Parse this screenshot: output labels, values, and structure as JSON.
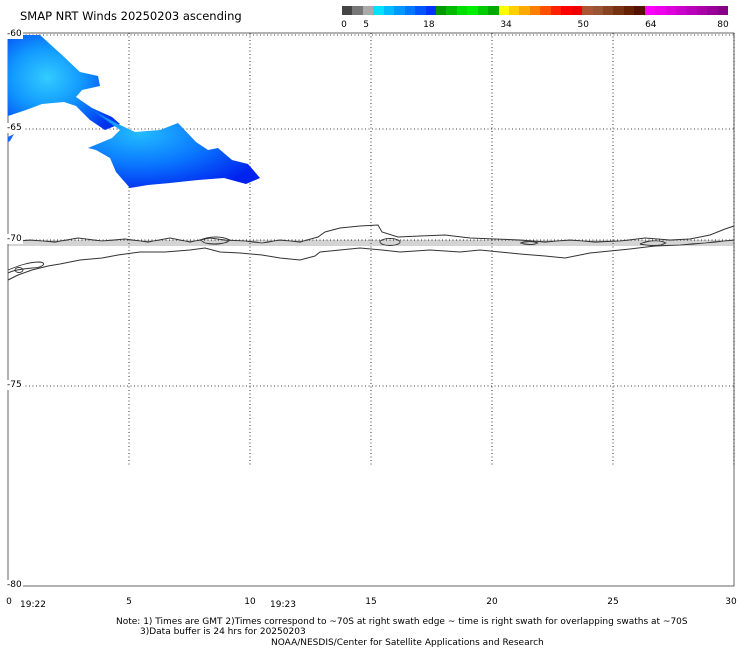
{
  "map": {
    "title": "SMAP NRT Winds 20250203 ascending"
  },
  "color_scale": {
    "labels": [
      {
        "text": "0",
        "value": 0
      },
      {
        "text": "5",
        "value": 5
      },
      {
        "text": "18",
        "value": 18
      },
      {
        "text": "34",
        "value": 34
      },
      {
        "text": "50",
        "value": 50
      },
      {
        "text": "64",
        "value": 64
      },
      {
        "text": "80",
        "value": 80
      }
    ],
    "segments": [
      "#444444",
      "#777777",
      "#aaaaaa",
      "#00e0ff",
      "#00bbff",
      "#0099ff",
      "#0077ff",
      "#0055ff",
      "#0033ff",
      "#009900",
      "#00bb00",
      "#00dd00",
      "#00ee00",
      "#00cc00",
      "#00aa00",
      "#ffff00",
      "#ffd000",
      "#ffaa00",
      "#ff8000",
      "#ff5000",
      "#ff2000",
      "#ff0000",
      "#ee0000",
      "#aa5533",
      "#995533",
      "#884422",
      "#773311",
      "#662200",
      "#551100",
      "#ff00ff",
      "#ee00ee",
      "#dd00dd",
      "#cc00cc",
      "#bb00bb",
      "#aa00aa",
      "#990099",
      "#880088"
    ]
  },
  "axes": {
    "latitude_labels": [
      "-60",
      "-65",
      "-70",
      "-75",
      "-80"
    ],
    "longitude_labels": [
      "0",
      "5",
      "10",
      "15",
      "20",
      "25",
      "30"
    ],
    "time_labels": [
      "19:22",
      "19:23"
    ]
  },
  "footer": {
    "note_line1": "Note: 1) Times are GMT 2)Times correspond to ~70S at right swath edge ~ time is right swath for overlapping swaths at ~70S",
    "note_line2": "3)Data buffer is 24 hrs for 20250203",
    "credit": "NOAA/NESDIS/Center for Satellite Applications and Research"
  },
  "colors": {
    "wind_low": "#0044ff",
    "wind_high": "#33ccff",
    "coastline": "#333333",
    "grid": "#000000",
    "background": "#ffffff"
  }
}
